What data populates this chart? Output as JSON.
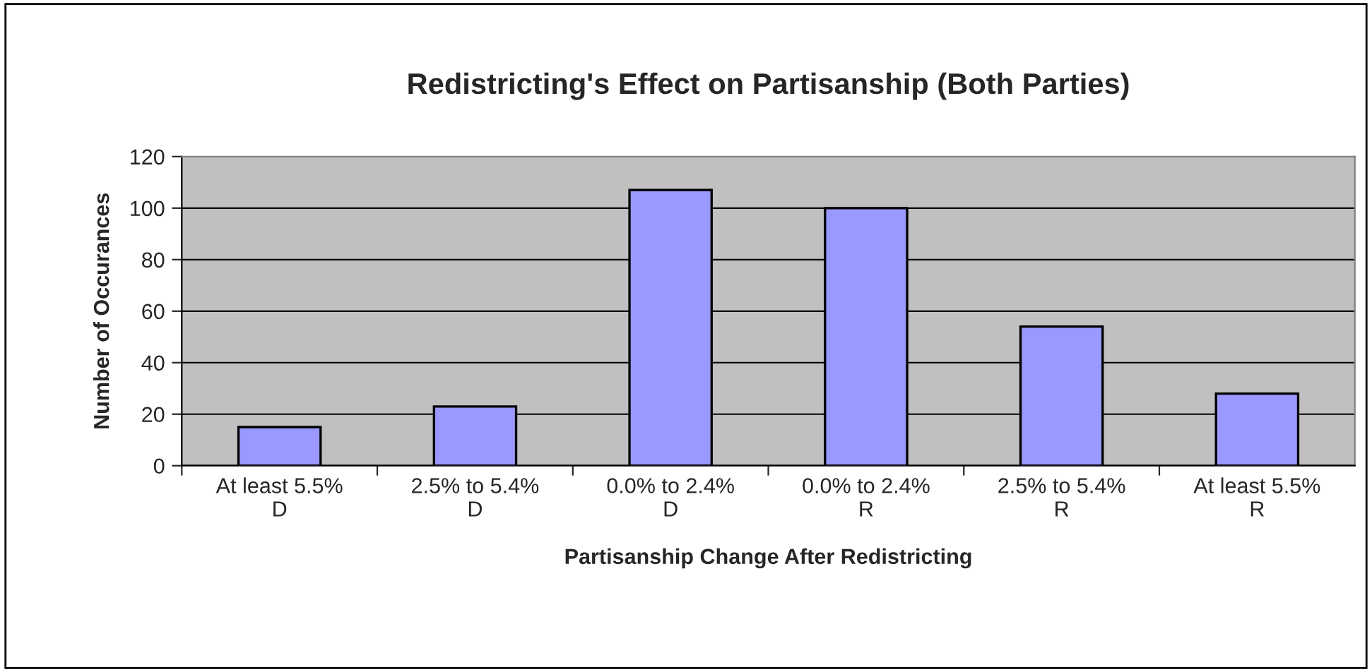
{
  "chart_data": {
    "type": "bar",
    "title": "Redistricting's Effect on Partisanship (Both Parties)",
    "xlabel": "Partisanship Change After Redistricting",
    "ylabel": "Number of Occurances",
    "categories": [
      "At least 5.5%\nD",
      "2.5% to 5.4%\nD",
      "0.0% to 2.4%\nD",
      "0.0% to 2.4%\nR",
      "2.5% to 5.4%\nR",
      "At least 5.5%\nR"
    ],
    "values": [
      15,
      23,
      107,
      100,
      54,
      28
    ],
    "color": "#9999ff",
    "ylim": [
      0,
      120
    ],
    "yticks": [
      0,
      20,
      40,
      60,
      80,
      100,
      120
    ],
    "grid": "y"
  }
}
